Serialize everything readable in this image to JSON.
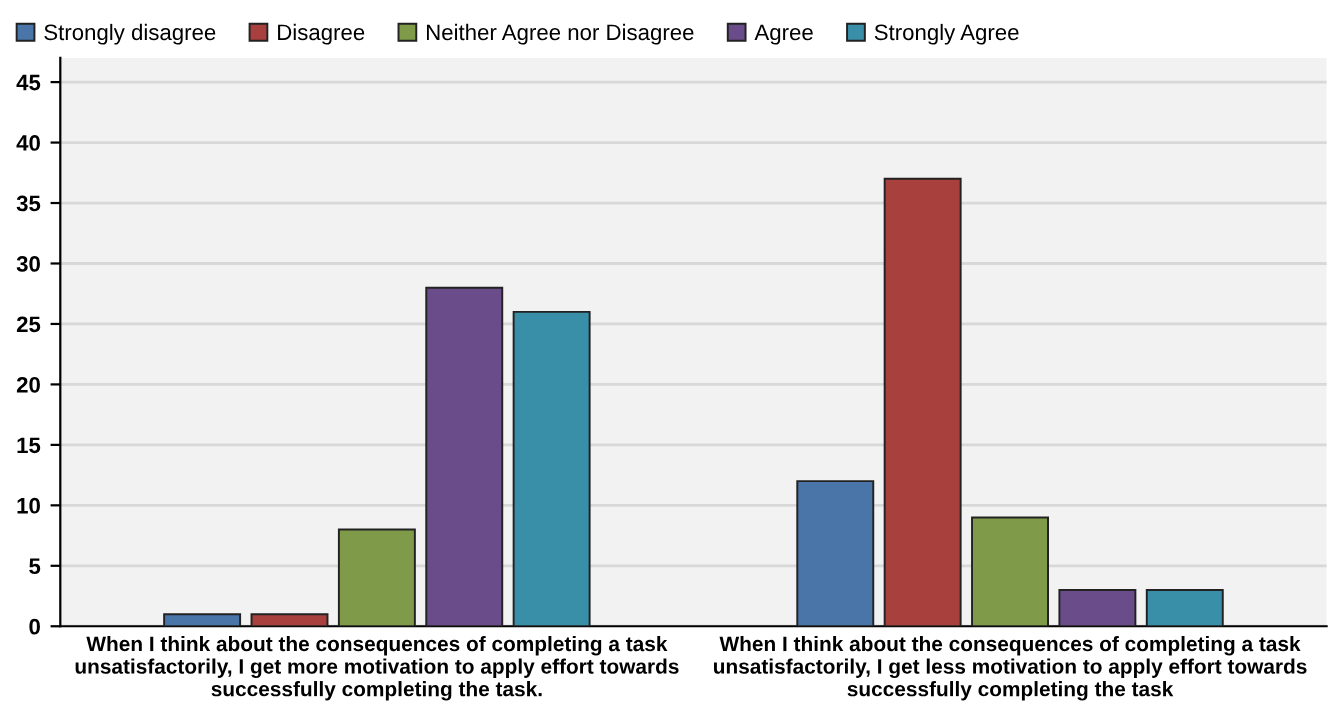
{
  "chart_data": {
    "type": "bar",
    "categories": [
      "When I think about the consequences of completing a task\nunsatisfactorily, I get more motivation to apply effort towards\nsuccessfully completing the task.",
      "When I think about the consequences of completing a task\nunsatisfactorily, I get less motivation to apply effort towards\nsuccessfully completing the task"
    ],
    "series": [
      {
        "name": "Strongly disagree",
        "color": "#4a75a8",
        "values": [
          1,
          12
        ]
      },
      {
        "name": "Disagree",
        "color": "#a8403e",
        "values": [
          1,
          37
        ]
      },
      {
        "name": "Neither Agree nor Disagree",
        "color": "#7f9a48",
        "values": [
          8,
          9
        ]
      },
      {
        "name": "Agree",
        "color": "#6a4c8a",
        "values": [
          28,
          3
        ]
      },
      {
        "name": "Strongly Agree",
        "color": "#3a8fa8",
        "values": [
          26,
          3
        ]
      }
    ],
    "ylim": [
      0,
      47
    ],
    "yticks": [
      0,
      5,
      10,
      15,
      20,
      25,
      30,
      35,
      40,
      45
    ],
    "grid": "y",
    "legend": "top left"
  }
}
